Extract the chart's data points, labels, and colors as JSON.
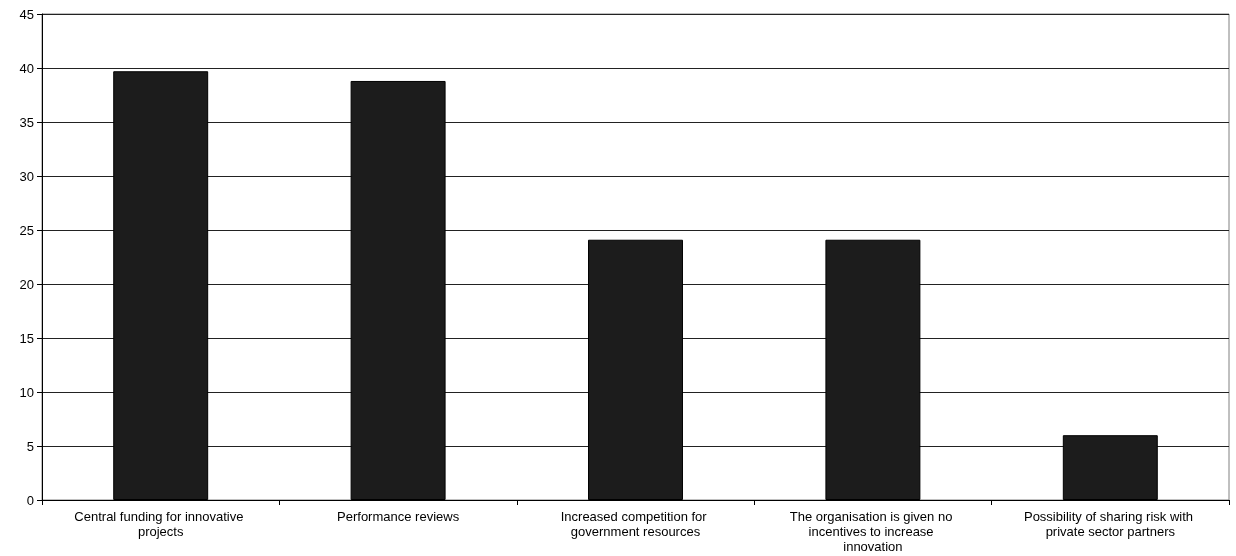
{
  "chart_data": {
    "type": "bar",
    "categories": [
      "Central funding for innovative projects",
      "Performance reviews",
      "Increased competition for government resources",
      "The organisation is given no incentives to increase innovation",
      "Possibility of sharing risk with private sector partners"
    ],
    "values": [
      39.7,
      38.8,
      24.1,
      24.1,
      6.0
    ],
    "color": "#1c1c1c",
    "ylim": [
      0,
      45
    ],
    "yticks": [
      0,
      5,
      10,
      15,
      20,
      25,
      30,
      35,
      40,
      45
    ],
    "grid": "y"
  }
}
